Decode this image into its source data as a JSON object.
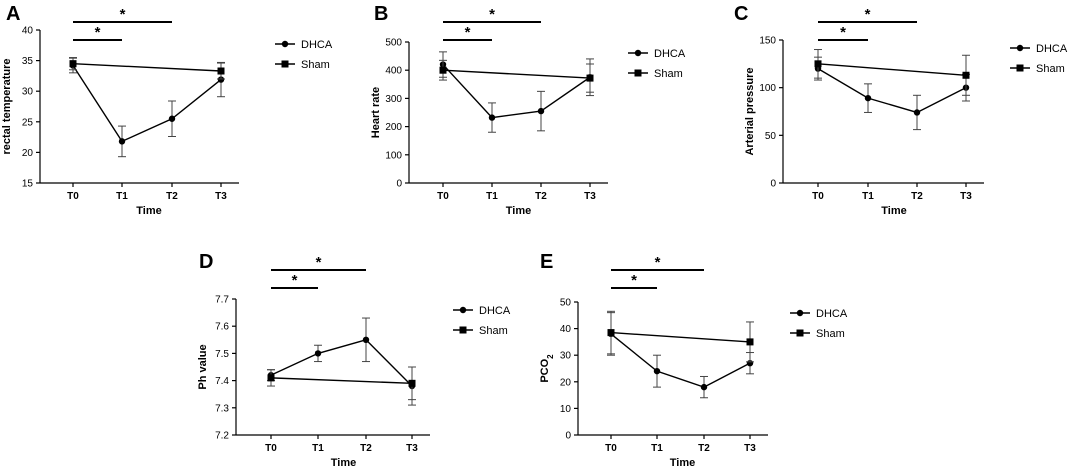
{
  "chart_data": [
    {
      "type": "line",
      "panel_letter": "A",
      "xlabel": "Time",
      "ylabel": "rectal temperature",
      "ylim": [
        15,
        40
      ],
      "yticks": [
        15,
        20,
        25,
        30,
        35,
        40
      ],
      "categories": [
        "T0",
        "T1",
        "T2",
        "T3"
      ],
      "series": [
        {
          "name": "DHCA",
          "marker": "circle",
          "values": [
            34.2,
            21.8,
            25.5,
            31.9
          ],
          "errors": [
            1.2,
            2.5,
            2.9,
            2.8
          ]
        },
        {
          "name": "Sham",
          "marker": "square",
          "values": [
            34.5,
            null,
            null,
            33.3
          ],
          "errors": [
            1.0,
            null,
            null,
            1.3
          ]
        }
      ],
      "significance": [
        {
          "from": "T0",
          "to": "T1",
          "label": "*"
        },
        {
          "from": "T0",
          "to": "T2",
          "label": "*"
        }
      ]
    },
    {
      "type": "line",
      "panel_letter": "B",
      "xlabel": "Time",
      "ylabel": "Heart rate",
      "ylim": [
        0,
        500
      ],
      "yticks": [
        0,
        100,
        200,
        300,
        400,
        500
      ],
      "categories": [
        "T0",
        "T1",
        "T2",
        "T3"
      ],
      "series": [
        {
          "name": "DHCA",
          "marker": "circle",
          "values": [
            420,
            232,
            255,
            375
          ],
          "errors": [
            45,
            52,
            70,
            65
          ]
        },
        {
          "name": "Sham",
          "marker": "square",
          "values": [
            400,
            null,
            null,
            372
          ],
          "errors": [
            35,
            null,
            null,
            50
          ]
        }
      ],
      "significance": [
        {
          "from": "T0",
          "to": "T1",
          "label": "*"
        },
        {
          "from": "T0",
          "to": "T2",
          "label": "*"
        }
      ]
    },
    {
      "type": "line",
      "panel_letter": "C",
      "xlabel": "Time",
      "ylabel": "Arterial pressure",
      "ylim": [
        0,
        150
      ],
      "yticks": [
        0,
        50,
        100,
        150
      ],
      "categories": [
        "T0",
        "T1",
        "T2",
        "T3"
      ],
      "series": [
        {
          "name": "DHCA",
          "marker": "circle",
          "values": [
            120,
            89,
            74,
            100
          ],
          "errors": [
            12,
            15,
            18,
            14
          ]
        },
        {
          "name": "Sham",
          "marker": "square",
          "values": [
            125,
            null,
            null,
            113
          ],
          "errors": [
            15,
            null,
            null,
            21
          ]
        }
      ],
      "significance": [
        {
          "from": "T0",
          "to": "T1",
          "label": "*"
        },
        {
          "from": "T0",
          "to": "T2",
          "label": "*"
        }
      ]
    },
    {
      "type": "line",
      "panel_letter": "D",
      "xlabel": "Time",
      "ylabel": "Ph value",
      "ylim": [
        7.2,
        7.7
      ],
      "yticks": [
        7.2,
        7.3,
        7.4,
        7.5,
        7.6,
        7.7
      ],
      "categories": [
        "T0",
        "T1",
        "T2",
        "T3"
      ],
      "series": [
        {
          "name": "DHCA",
          "marker": "circle",
          "values": [
            7.42,
            7.5,
            7.55,
            7.38
          ],
          "errors": [
            0.02,
            0.03,
            0.08,
            0.07
          ]
        },
        {
          "name": "Sham",
          "marker": "square",
          "values": [
            7.41,
            null,
            null,
            7.39
          ],
          "errors": [
            0.03,
            null,
            null,
            0.06
          ]
        }
      ],
      "significance": [
        {
          "from": "T0",
          "to": "T1",
          "label": "*"
        },
        {
          "from": "T0",
          "to": "T2",
          "label": "*"
        }
      ]
    },
    {
      "type": "line",
      "panel_letter": "E",
      "xlabel": "Time",
      "ylabel": "PCO",
      "ylabel_subscript": "2",
      "ylim": [
        0,
        50
      ],
      "yticks": [
        0,
        10,
        20,
        30,
        40,
        50
      ],
      "categories": [
        "T0",
        "T1",
        "T2",
        "T3"
      ],
      "series": [
        {
          "name": "DHCA",
          "marker": "circle",
          "values": [
            38,
            24,
            18,
            27
          ],
          "errors": [
            8,
            6,
            4,
            4
          ]
        },
        {
          "name": "Sham",
          "marker": "square",
          "values": [
            38.5,
            null,
            null,
            35
          ],
          "errors": [
            8,
            null,
            null,
            7.5
          ]
        }
      ],
      "significance": [
        {
          "from": "T0",
          "to": "T1",
          "label": "*"
        },
        {
          "from": "T0",
          "to": "T2",
          "label": "*"
        }
      ]
    }
  ]
}
